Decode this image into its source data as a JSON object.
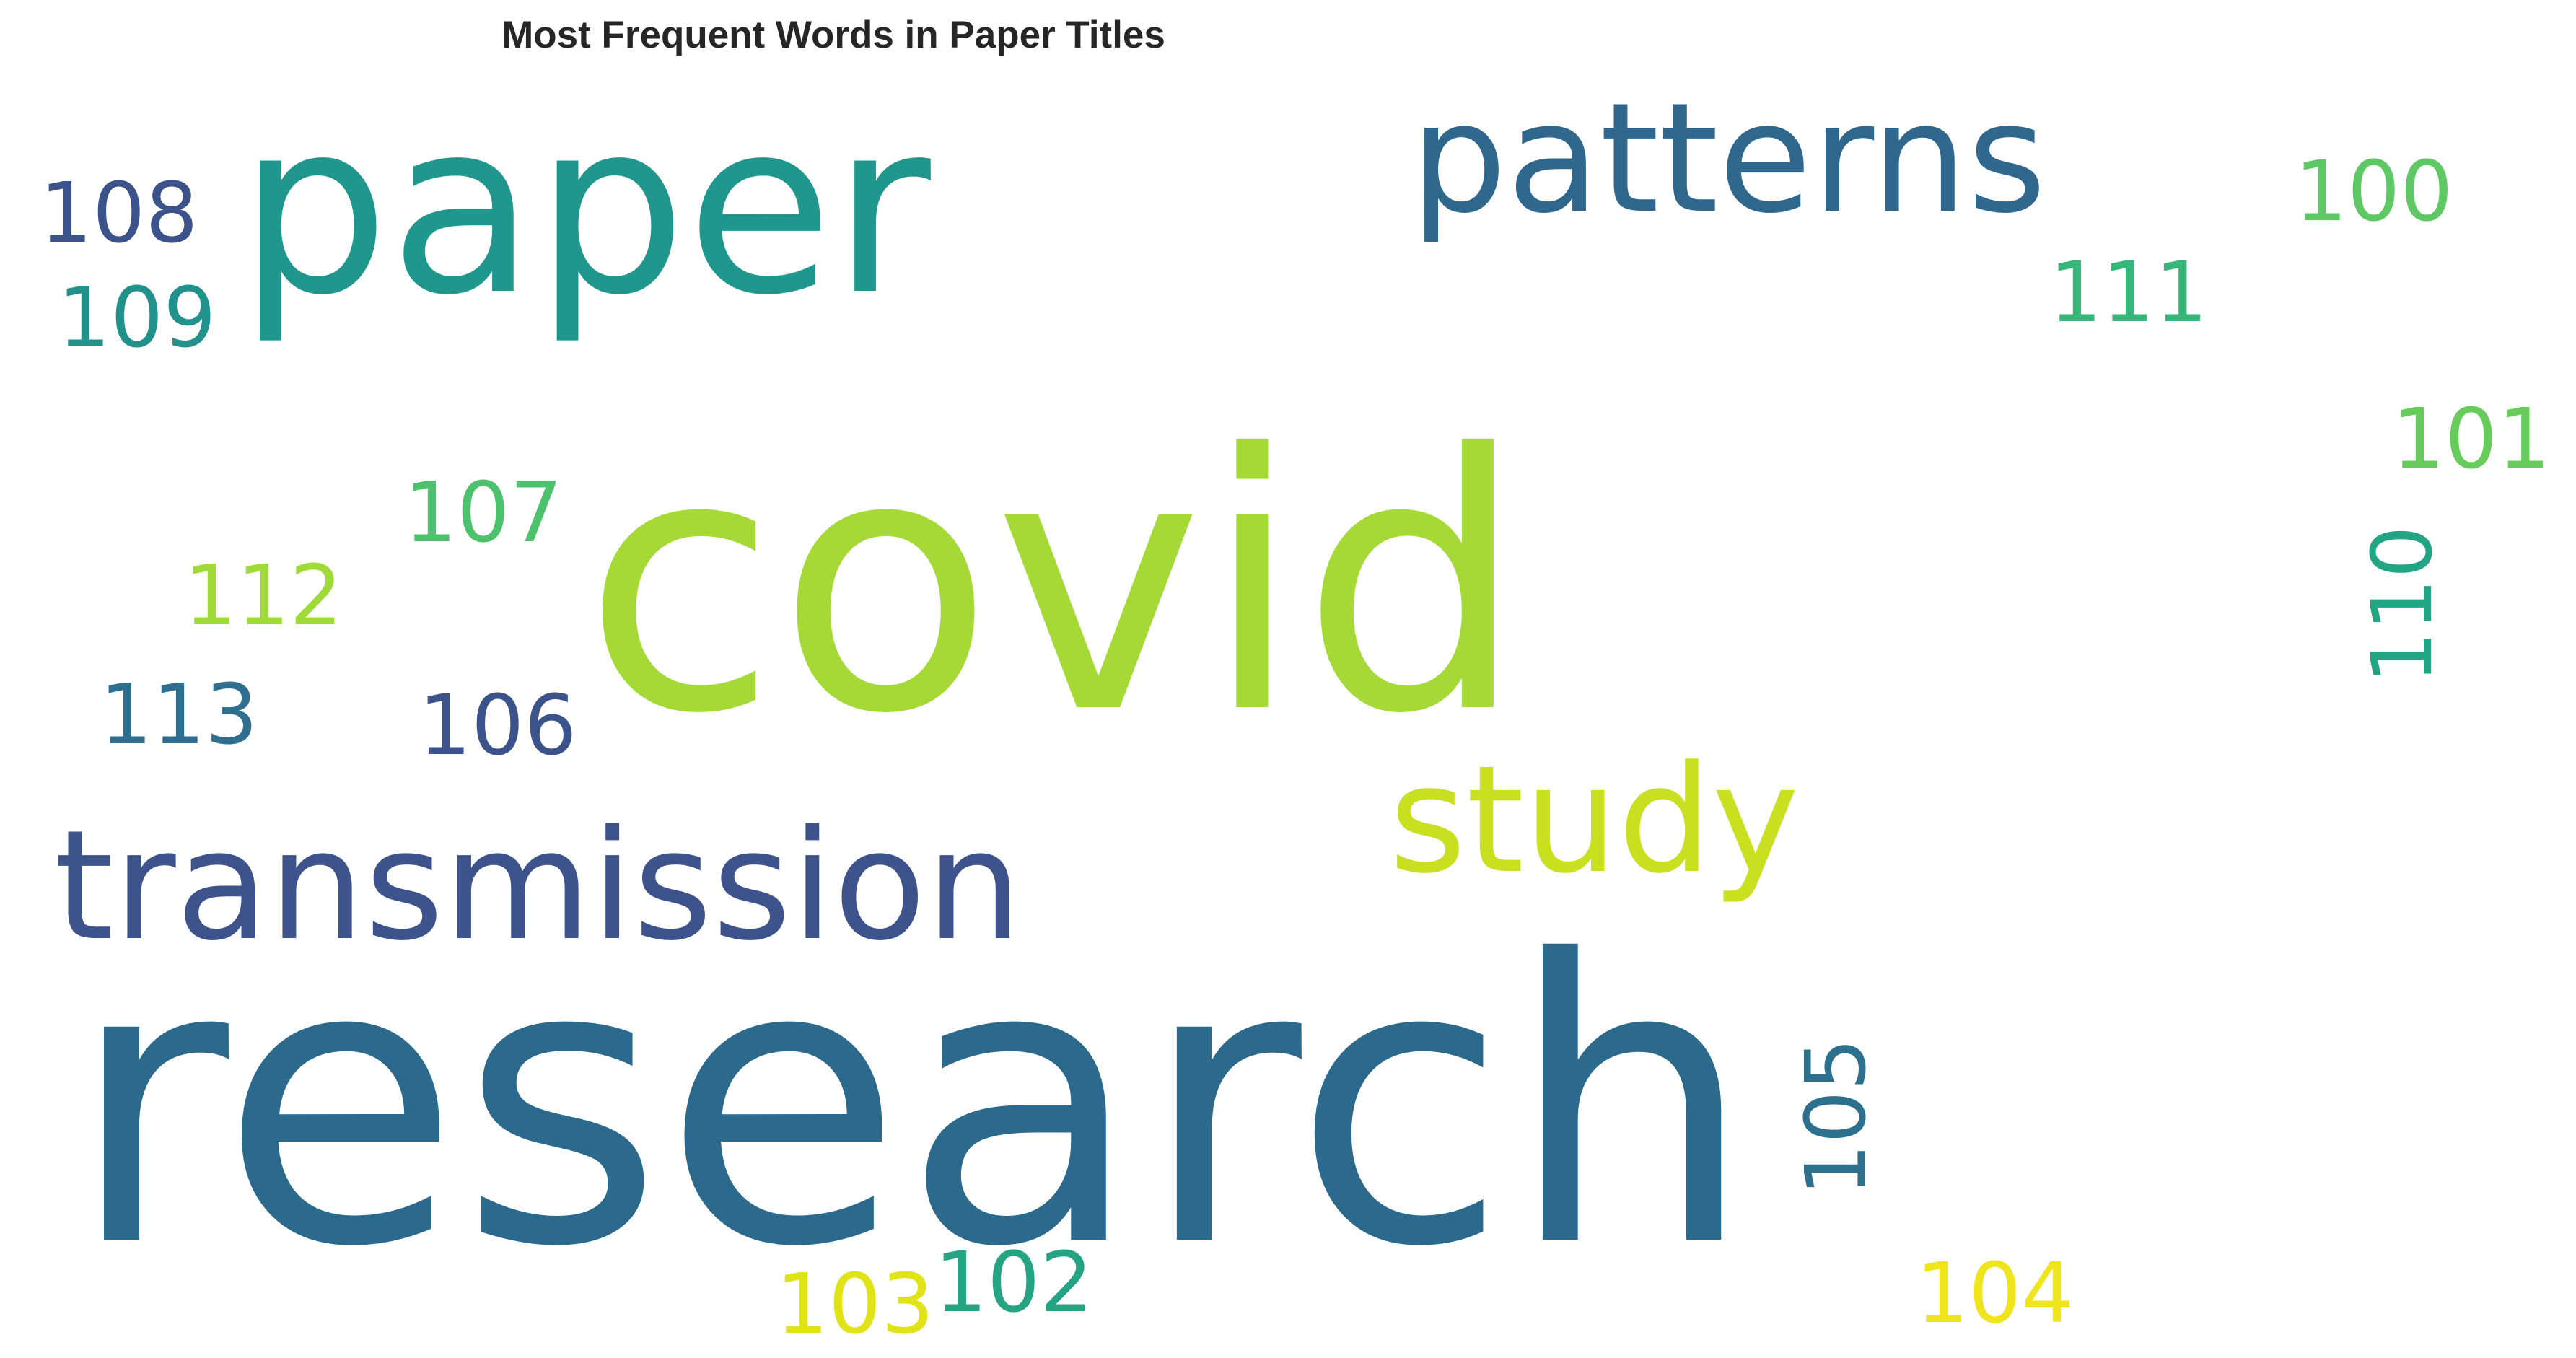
{
  "chart_data": {
    "type": "wordcloud",
    "title": "Most Frequent Words in Paper Titles",
    "words": [
      {
        "text": "research",
        "color": "#2c6a8d"
      },
      {
        "text": "covid",
        "color": "#a5da36"
      },
      {
        "text": "paper",
        "color": "#20978c"
      },
      {
        "text": "transmission",
        "color": "#3e528b"
      },
      {
        "text": "patterns",
        "color": "#30678d"
      },
      {
        "text": "study",
        "color": "#c9e020"
      },
      {
        "text": "100",
        "color": "#5ec865"
      },
      {
        "text": "101",
        "color": "#67cc5c"
      },
      {
        "text": "102",
        "color": "#25a484"
      },
      {
        "text": "103",
        "color": "#dfe318"
      },
      {
        "text": "104",
        "color": "#efe51c"
      },
      {
        "text": "105",
        "color": "#2d708e"
      },
      {
        "text": "106",
        "color": "#3b528b"
      },
      {
        "text": "107",
        "color": "#4cc26c"
      },
      {
        "text": "108",
        "color": "#3b528b"
      },
      {
        "text": "109",
        "color": "#21918c"
      },
      {
        "text": "110",
        "color": "#21a585"
      },
      {
        "text": "111",
        "color": "#35b779"
      },
      {
        "text": "112",
        "color": "#a0da39"
      },
      {
        "text": "113",
        "color": "#2e6e8e"
      }
    ]
  }
}
